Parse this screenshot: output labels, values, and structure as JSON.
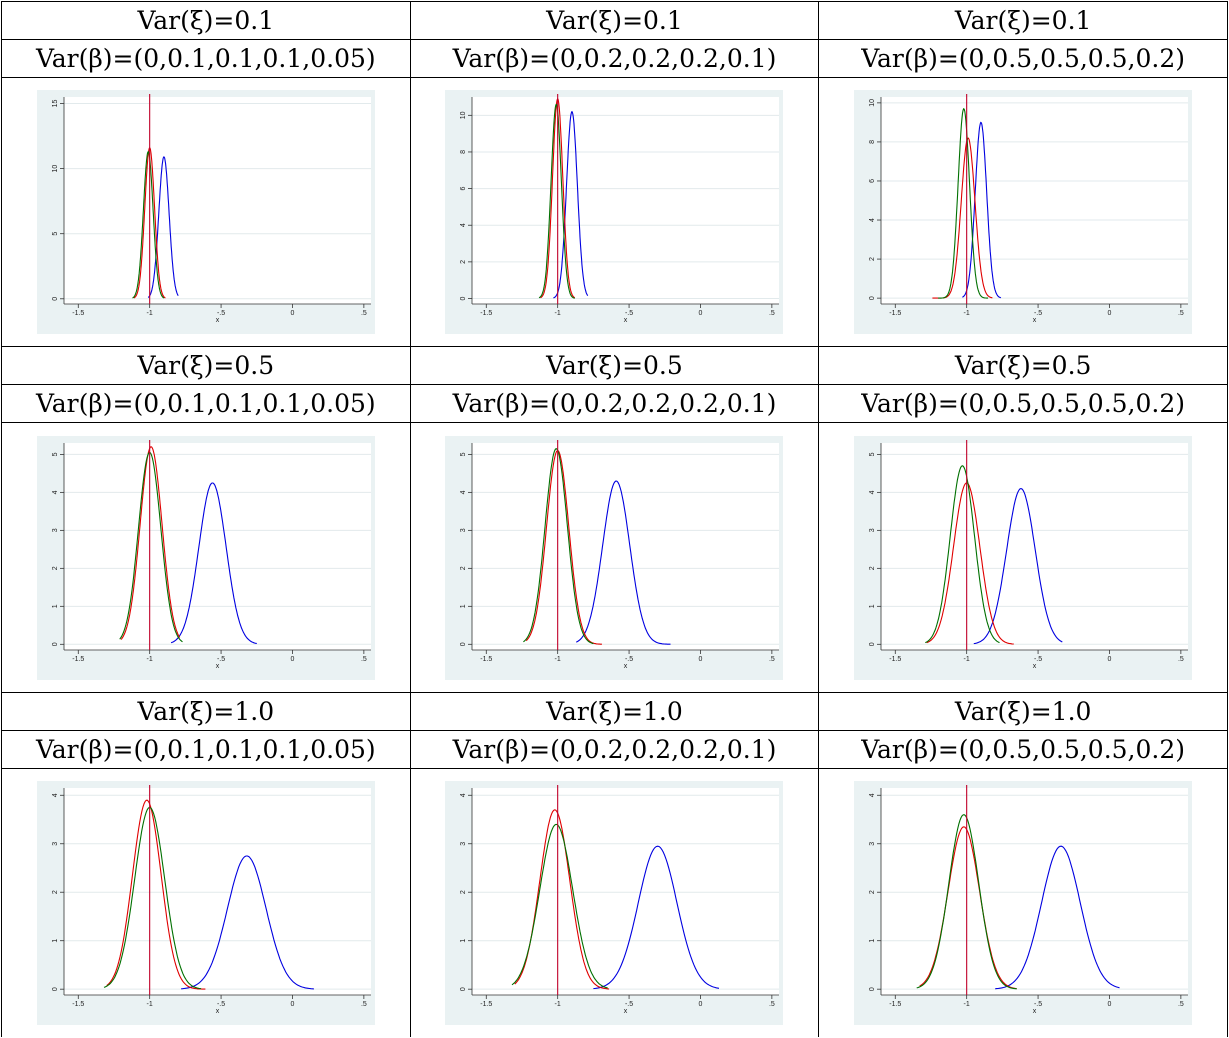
{
  "colors": {
    "panel_background": "#eaf2f3",
    "plot_area": "#ffffff",
    "grid": "#e2eaec",
    "reference_line": "#c0002a",
    "series_blue": "#0000e0",
    "series_red": "#e00000",
    "series_green": "#007000"
  },
  "chart_data": [
    {
      "type": "line",
      "var_xi_label": "Var(ξ)=0.1",
      "var_beta_label": "Var(β)=(0,0.1,0.1,0.1,0.05)",
      "xlabel": "x",
      "ylabel": "",
      "xlim": [
        -1.6,
        0.55
      ],
      "ylim": [
        -0.4,
        15.5
      ],
      "x_ticks": [
        -1.5,
        -1,
        -0.5,
        0,
        0.5
      ],
      "x_tick_labels": [
        "-1.5",
        "-1",
        "-.5",
        "0",
        ".5"
      ],
      "y_ticks": [
        0,
        5,
        10,
        15
      ],
      "y_tick_labels": [
        "0",
        "5",
        "10",
        "15"
      ],
      "grid": true,
      "reference_x": -1.0,
      "series": [
        {
          "color": "blue",
          "center": -0.9,
          "sd": 0.036,
          "peak": 10.9,
          "x_range": [
            -1.01,
            -0.8
          ]
        },
        {
          "color": "red",
          "center": -1.0,
          "sd": 0.034,
          "peak": 11.6,
          "x_range": [
            -1.11,
            -0.89
          ]
        },
        {
          "color": "green",
          "center": -1.01,
          "sd": 0.034,
          "peak": 11.3,
          "x_range": [
            -1.12,
            -0.9
          ]
        }
      ]
    },
    {
      "type": "line",
      "var_xi_label": "Var(ξ)=0.1",
      "var_beta_label": "Var(β)=(0,0.2,0.2,0.2,0.1)",
      "xlabel": "x",
      "ylabel": "",
      "xlim": [
        -1.6,
        0.55
      ],
      "ylim": [
        -0.3,
        11.0
      ],
      "x_ticks": [
        -1.5,
        -1,
        -0.5,
        0,
        0.5
      ],
      "x_tick_labels": [
        "-1.5",
        "-1",
        "-.5",
        "0",
        ".5"
      ],
      "y_ticks": [
        0,
        2,
        4,
        6,
        8,
        10
      ],
      "y_tick_labels": [
        "0",
        "2",
        "4",
        "6",
        "8",
        "10"
      ],
      "grid": true,
      "reference_x": -1.0,
      "series": [
        {
          "color": "blue",
          "center": -0.9,
          "sd": 0.038,
          "peak": 10.2,
          "x_range": [
            -1.03,
            -0.79
          ]
        },
        {
          "color": "red",
          "center": -1.0,
          "sd": 0.036,
          "peak": 10.9,
          "x_range": [
            -1.12,
            -0.88
          ]
        },
        {
          "color": "green",
          "center": -1.01,
          "sd": 0.036,
          "peak": 10.6,
          "x_range": [
            -1.13,
            -0.88
          ]
        }
      ]
    },
    {
      "type": "line",
      "var_xi_label": "Var(ξ)=0.1",
      "var_beta_label": "Var(β)=(0,0.5,0.5,0.5,0.2)",
      "xlabel": "x",
      "ylabel": "",
      "xlim": [
        -1.6,
        0.55
      ],
      "ylim": [
        -0.3,
        10.3
      ],
      "x_ticks": [
        -1.5,
        -1,
        -0.5,
        0,
        0.5
      ],
      "x_tick_labels": [
        "-1.5",
        "-1",
        "-.5",
        "0",
        ".5"
      ],
      "y_ticks": [
        0,
        2,
        4,
        6,
        8,
        10
      ],
      "y_tick_labels": [
        "0",
        "2",
        "4",
        "6",
        "8",
        "10"
      ],
      "grid": true,
      "reference_x": -1.0,
      "series": [
        {
          "color": "blue",
          "center": -0.9,
          "sd": 0.04,
          "peak": 9.0,
          "x_range": [
            -1.03,
            -0.76
          ]
        },
        {
          "color": "red",
          "center": -0.99,
          "sd": 0.048,
          "peak": 8.2,
          "x_range": [
            -1.24,
            -0.82
          ]
        },
        {
          "color": "green",
          "center": -1.02,
          "sd": 0.04,
          "peak": 9.7,
          "x_range": [
            -1.2,
            -0.85
          ]
        }
      ]
    },
    {
      "type": "line",
      "var_xi_label": "Var(ξ)=0.5",
      "var_beta_label": "Var(β)=(0,0.1,0.1,0.1,0.05)",
      "xlabel": "x",
      "ylabel": "",
      "xlim": [
        -1.6,
        0.55
      ],
      "ylim": [
        -0.15,
        5.3
      ],
      "x_ticks": [
        -1.5,
        -1,
        -0.5,
        0,
        0.5
      ],
      "x_tick_labels": [
        "-1.5",
        "-1",
        "-.5",
        "0",
        ".5"
      ],
      "y_ticks": [
        0,
        1,
        2,
        3,
        4,
        5
      ],
      "y_tick_labels": [
        "0",
        "1",
        "2",
        "3",
        "4",
        "5"
      ],
      "grid": true,
      "reference_x": -1.0,
      "series": [
        {
          "color": "blue",
          "center": -0.56,
          "sd": 0.095,
          "peak": 4.25,
          "x_range": [
            -0.85,
            -0.25
          ]
        },
        {
          "color": "red",
          "center": -0.99,
          "sd": 0.077,
          "peak": 5.2,
          "x_range": [
            -1.2,
            -0.79
          ]
        },
        {
          "color": "green",
          "center": -1.0,
          "sd": 0.078,
          "peak": 5.05,
          "x_range": [
            -1.21,
            -0.77
          ]
        }
      ]
    },
    {
      "type": "line",
      "var_xi_label": "Var(ξ)=0.5",
      "var_beta_label": "Var(β)=(0,0.2,0.2,0.2,0.1)",
      "xlabel": "x",
      "ylabel": "",
      "xlim": [
        -1.6,
        0.55
      ],
      "ylim": [
        -0.15,
        5.3
      ],
      "x_ticks": [
        -1.5,
        -1,
        -0.5,
        0,
        0.5
      ],
      "x_tick_labels": [
        "-1.5",
        "-1",
        "-.5",
        "0",
        ".5"
      ],
      "y_ticks": [
        0,
        1,
        2,
        3,
        4,
        5
      ],
      "y_tick_labels": [
        "0",
        "1",
        "2",
        "3",
        "4",
        "5"
      ],
      "grid": true,
      "reference_x": -1.0,
      "series": [
        {
          "color": "blue",
          "center": -0.59,
          "sd": 0.095,
          "peak": 4.3,
          "x_range": [
            -0.87,
            -0.21
          ]
        },
        {
          "color": "red",
          "center": -1.0,
          "sd": 0.078,
          "peak": 5.1,
          "x_range": [
            -1.22,
            -0.69
          ]
        },
        {
          "color": "green",
          "center": -1.01,
          "sd": 0.078,
          "peak": 5.15,
          "x_range": [
            -1.24,
            -0.75
          ]
        }
      ]
    },
    {
      "type": "line",
      "var_xi_label": "Var(ξ)=0.5",
      "var_beta_label": "Var(β)=(0,0.5,0.5,0.5,0.2)",
      "xlabel": "x",
      "ylabel": "",
      "xlim": [
        -1.6,
        0.55
      ],
      "ylim": [
        -0.15,
        5.3
      ],
      "x_ticks": [
        -1.5,
        -1,
        -0.5,
        0,
        0.5
      ],
      "x_tick_labels": [
        "-1.5",
        "-1",
        "-.5",
        "0",
        ".5"
      ],
      "y_ticks": [
        0,
        1,
        2,
        3,
        4,
        5
      ],
      "y_tick_labels": [
        "0",
        "1",
        "2",
        "3",
        "4",
        "5"
      ],
      "grid": true,
      "reference_x": -1.0,
      "series": [
        {
          "color": "blue",
          "center": -0.62,
          "sd": 0.1,
          "peak": 4.1,
          "x_range": [
            -0.95,
            -0.33
          ]
        },
        {
          "color": "red",
          "center": -1.0,
          "sd": 0.092,
          "peak": 4.25,
          "x_range": [
            -1.28,
            -0.67
          ]
        },
        {
          "color": "green",
          "center": -1.03,
          "sd": 0.085,
          "peak": 4.7,
          "x_range": [
            -1.29,
            -0.77
          ]
        }
      ]
    },
    {
      "type": "line",
      "var_xi_label": "Var(ξ)=1.0",
      "var_beta_label": "Var(β)=(0,0.1,0.1,0.1,0.05)",
      "xlabel": "x",
      "ylabel": "",
      "xlim": [
        -1.6,
        0.55
      ],
      "ylim": [
        -0.12,
        4.15
      ],
      "x_ticks": [
        -1.5,
        -1,
        -0.5,
        0,
        0.5
      ],
      "x_tick_labels": [
        "-1.5",
        "-1",
        "-.5",
        "0",
        ".5"
      ],
      "y_ticks": [
        0,
        1,
        2,
        3,
        4
      ],
      "y_tick_labels": [
        "0",
        "1",
        "2",
        "3",
        "4"
      ],
      "grid": true,
      "reference_x": -1.0,
      "series": [
        {
          "color": "blue",
          "center": -0.32,
          "sd": 0.135,
          "peak": 2.75,
          "x_range": [
            -0.78,
            0.15
          ]
        },
        {
          "color": "red",
          "center": -1.02,
          "sd": 0.1,
          "peak": 3.9,
          "x_range": [
            -1.3,
            -0.61
          ]
        },
        {
          "color": "green",
          "center": -1.0,
          "sd": 0.105,
          "peak": 3.75,
          "x_range": [
            -1.32,
            -0.64
          ]
        }
      ]
    },
    {
      "type": "line",
      "var_xi_label": "Var(ξ)=1.0",
      "var_beta_label": "Var(β)=(0,0.2,0.2,0.2,0.1)",
      "xlabel": "x",
      "ylabel": "",
      "xlim": [
        -1.6,
        0.55
      ],
      "ylim": [
        -0.12,
        4.15
      ],
      "x_ticks": [
        -1.5,
        -1,
        -0.5,
        0,
        0.5
      ],
      "x_tick_labels": [
        "-1.5",
        "-1",
        "-.5",
        "0",
        ".5"
      ],
      "y_ticks": [
        0,
        1,
        2,
        3,
        4
      ],
      "y_tick_labels": [
        "0",
        "1",
        "2",
        "3",
        "4"
      ],
      "grid": true,
      "reference_x": -1.0,
      "series": [
        {
          "color": "blue",
          "center": -0.3,
          "sd": 0.135,
          "peak": 2.95,
          "x_range": [
            -0.75,
            0.13
          ]
        },
        {
          "color": "red",
          "center": -1.02,
          "sd": 0.105,
          "peak": 3.7,
          "x_range": [
            -1.3,
            -0.64
          ]
        },
        {
          "color": "green",
          "center": -1.01,
          "sd": 0.115,
          "peak": 3.4,
          "x_range": [
            -1.32,
            -0.65
          ]
        }
      ]
    },
    {
      "type": "line",
      "var_xi_label": "Var(ξ)=1.0",
      "var_beta_label": "Var(β)=(0,0.5,0.5,0.5,0.2)",
      "xlabel": "x",
      "ylabel": "",
      "xlim": [
        -1.6,
        0.55
      ],
      "ylim": [
        -0.12,
        4.15
      ],
      "x_ticks": [
        -1.5,
        -1,
        -0.5,
        0,
        0.5
      ],
      "x_tick_labels": [
        "-1.5",
        "-1",
        "-.5",
        "0",
        ".5"
      ],
      "y_ticks": [
        0,
        1,
        2,
        3,
        4
      ],
      "y_tick_labels": [
        "0",
        "1",
        "2",
        "3",
        "4"
      ],
      "grid": true,
      "reference_x": -1.0,
      "series": [
        {
          "color": "blue",
          "center": -0.34,
          "sd": 0.135,
          "peak": 2.95,
          "x_range": [
            -0.8,
            0.07
          ]
        },
        {
          "color": "red",
          "center": -1.02,
          "sd": 0.11,
          "peak": 3.35,
          "x_range": [
            -1.33,
            -0.65
          ]
        },
        {
          "color": "green",
          "center": -1.02,
          "sd": 0.105,
          "peak": 3.6,
          "x_range": [
            -1.35,
            -0.65
          ]
        }
      ]
    }
  ]
}
